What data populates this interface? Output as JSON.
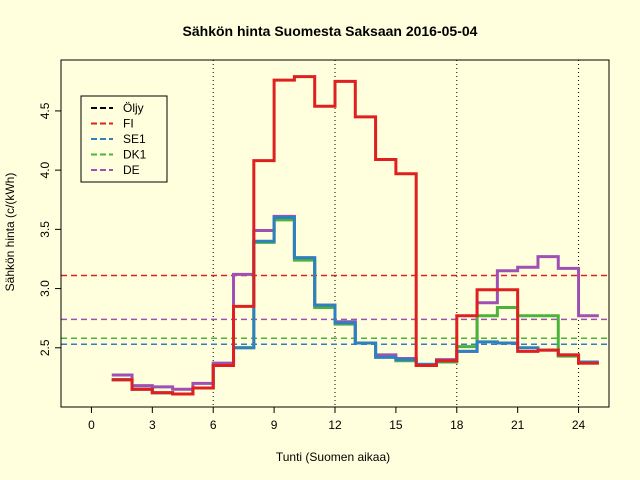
{
  "chart_data": {
    "type": "line",
    "title": "Sähkön hinta Suomesta Saksaan 2016-05-04",
    "xlabel": "Tunti (Suomen aikaa)",
    "ylabel": "Sähkön hinta (c/(kWh)",
    "xlim": [
      -1.5,
      25.5
    ],
    "ylim": [
      2.0,
      4.93
    ],
    "x_ticks": [
      0,
      3,
      6,
      9,
      12,
      15,
      18,
      21,
      24
    ],
    "y_ticks": [
      2.5,
      3.0,
      3.5,
      4.0,
      4.5
    ],
    "y_tick_labels": [
      "2.5",
      "3.0",
      "3.5",
      "4.0",
      "4.5"
    ],
    "vertical_gridlines": [
      6,
      12,
      18,
      24
    ],
    "legend_position": "top-left",
    "hours": [
      1,
      2,
      3,
      4,
      5,
      6,
      7,
      8,
      9,
      10,
      11,
      12,
      13,
      14,
      15,
      16,
      17,
      18,
      19,
      20,
      21,
      22,
      23,
      24
    ],
    "series": [
      {
        "name": "Öljy",
        "color": "#000000",
        "values": []
      },
      {
        "name": "FI",
        "color": "#DF2020",
        "values": [
          2.23,
          2.15,
          2.12,
          2.11,
          2.16,
          2.35,
          2.85,
          4.08,
          4.76,
          4.79,
          4.54,
          4.75,
          4.45,
          4.09,
          3.97,
          2.35,
          2.39,
          2.77,
          2.99,
          2.99,
          2.47,
          2.48,
          2.44,
          2.37
        ]
      },
      {
        "name": "SE1",
        "color": "#2F80C0",
        "values": [
          2.23,
          2.15,
          2.12,
          2.11,
          2.16,
          2.35,
          2.5,
          3.4,
          3.6,
          3.26,
          2.86,
          2.71,
          2.54,
          2.42,
          2.4,
          2.36,
          2.39,
          2.47,
          2.55,
          2.54,
          2.5,
          2.48,
          2.44,
          2.38
        ]
      },
      {
        "name": "DK1",
        "color": "#4CB23C",
        "values": [
          2.23,
          2.15,
          2.12,
          2.11,
          2.16,
          2.35,
          2.5,
          3.39,
          3.58,
          3.24,
          2.84,
          2.7,
          2.54,
          2.42,
          2.39,
          2.35,
          2.38,
          2.51,
          2.77,
          2.84,
          2.77,
          2.77,
          2.43,
          2.37
        ]
      },
      {
        "name": "DE",
        "color": "#9E50B4",
        "values": [
          2.27,
          2.18,
          2.17,
          2.15,
          2.2,
          2.37,
          3.12,
          3.49,
          3.61,
          3.26,
          2.86,
          2.72,
          2.54,
          2.44,
          2.41,
          2.36,
          2.4,
          2.47,
          2.88,
          3.15,
          3.18,
          3.27,
          3.17,
          2.77
        ]
      }
    ],
    "dashed_levels": [
      {
        "name": "FI",
        "color": "#DF2020",
        "value": 3.11
      },
      {
        "name": "DE",
        "color": "#9E50B4",
        "value": 2.74
      },
      {
        "name": "DK1",
        "color": "#4CB23C",
        "value": 2.58
      },
      {
        "name": "SE1",
        "color": "#2F80C0",
        "value": 2.53
      }
    ]
  }
}
